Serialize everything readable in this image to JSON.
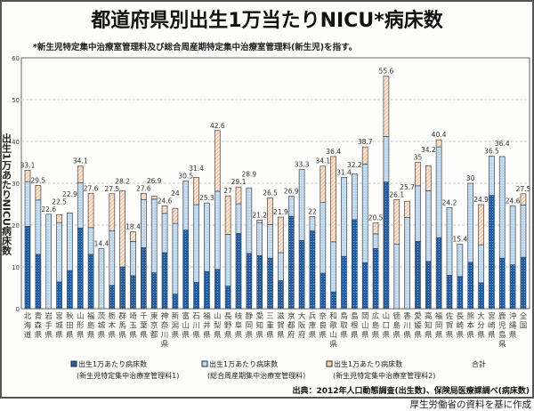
{
  "title": "都道府県別出生1万当たりNICU*病床数",
  "footnote": "*新生児特定集中治療室管理料及び総合周産期特定集中治療室管理料(新生児)を指す。",
  "source": "出典：2012年人口動態調査(出生数)、保険局医療課調べ(病床数)",
  "credit": "厚生労働省の資料を基に作成",
  "colors": {
    "series1": "#1f5fa8",
    "series2": "#bcd7f0",
    "series3": "#f7cfae",
    "border": "#555555"
  },
  "chart_data": {
    "type": "bar",
    "stacked": true,
    "ylabel": "出生1万あたりNICU病床数",
    "ylim": [
      0,
      60
    ],
    "yticks": [
      0,
      10,
      20,
      30,
      40,
      50,
      60
    ],
    "grid": true,
    "legend_position": "bottom",
    "categories": [
      "北海道",
      "青森県",
      "岩手県",
      "宮城県",
      "秋田県",
      "山形県",
      "福島県",
      "茨城県",
      "栃木県",
      "群馬県",
      "埼玉県",
      "千葉県",
      "東京都",
      "神奈川県",
      "新潟県",
      "富山県",
      "石川県",
      "福井県",
      "山梨県",
      "長野県",
      "岐阜県",
      "静岡県",
      "愛知県",
      "三重県",
      "滋賀県",
      "京都府",
      "大阪府",
      "兵庫県",
      "奈良県",
      "和歌山県",
      "鳥取県",
      "島根県",
      "岡山県",
      "広島県",
      "山口県",
      "徳島県",
      "香川県",
      "愛媛県",
      "高知県",
      "福岡県",
      "佐賀県",
      "長崎県",
      "熊本県",
      "大分県",
      "宮崎県",
      "鹿児島県",
      "沖縄県",
      "全国"
    ],
    "series": [
      {
        "name": "出生1万あたり病床数",
        "sub": "(新生児特定集中治療室管理料1)",
        "values": [
          19.7,
          13.0,
          0,
          6.4,
          9.1,
          19.3,
          13.0,
          0,
          5.6,
          10.0,
          7.9,
          14.6,
          8.6,
          13.4,
          3.5,
          18.8,
          6.3,
          8.9,
          9.4,
          5.4,
          18.0,
          13.2,
          12.7,
          12.1,
          6.7,
          22.1,
          16.3,
          18.6,
          8.5,
          4.0,
          12.5,
          21.3,
          11.0,
          14.4,
          30.3,
          0,
          0,
          16.1,
          11.3,
          17.0,
          8.0,
          7.7,
          11.1,
          6.2,
          27.1,
          12.1,
          10.5,
          12.3
        ]
      },
      {
        "name": "出生1万あたり病床数",
        "sub": "(総合周産期集中治療室管理料)",
        "values": [
          10.7,
          13.0,
          22.6,
          14.2,
          13.8,
          10.8,
          6.4,
          14.4,
          13.0,
          0,
          8.2,
          11.5,
          17.6,
          9.4,
          16.9,
          11.7,
          18.6,
          16.4,
          18.7,
          12.4,
          7.1,
          15.7,
          7.9,
          8.0,
          6.7,
          4.8,
          17.0,
          3.4,
          16.9,
          12.0,
          18.9,
          10.9,
          23.6,
          3.5,
          10.9,
          15.4,
          21.8,
          13.3,
          16.9,
          21.7,
          16.2,
          7.7,
          18.9,
          9.1,
          9.4,
          24.3,
          14.1,
          12.5
        ]
      },
      {
        "name": "出生1万あたり病床数",
        "sub": "(新生児特定集中治療室管理料2)",
        "values": [
          2.7,
          3.5,
          0,
          1.9,
          0,
          4.0,
          8.2,
          0,
          8.9,
          18.2,
          2.3,
          1.5,
          0.7,
          1.8,
          3.6,
          0,
          6.5,
          0,
          14.5,
          9.2,
          4.0,
          0,
          0.6,
          6.4,
          8.5,
          0,
          0,
          0,
          8.7,
          20.4,
          0,
          0,
          4.1,
          2.6,
          14.4,
          10.7,
          3.9,
          5.6,
          6.0,
          1.7,
          0,
          0,
          0,
          9.6,
          0,
          0,
          0,
          2.7
        ]
      }
    ],
    "totals_label": "合計",
    "totals": [
      33.1,
      29.5,
      22.6,
      22.5,
      22.9,
      34.1,
      27.6,
      14.4,
      27.5,
      28.2,
      18.4,
      27.6,
      26.9,
      24.6,
      24.0,
      30.5,
      31.4,
      25.3,
      42.6,
      27.0,
      29.1,
      28.9,
      21.2,
      26.5,
      21.9,
      26.9,
      33.3,
      22.0,
      34.1,
      36.4,
      31.4,
      32.2,
      38.7,
      20.5,
      55.6,
      26.1,
      25.7,
      35.0,
      34.2,
      40.4,
      24.2,
      15.4,
      30.0,
      24.9,
      36.5,
      36.4,
      24.6,
      27.5
    ]
  }
}
